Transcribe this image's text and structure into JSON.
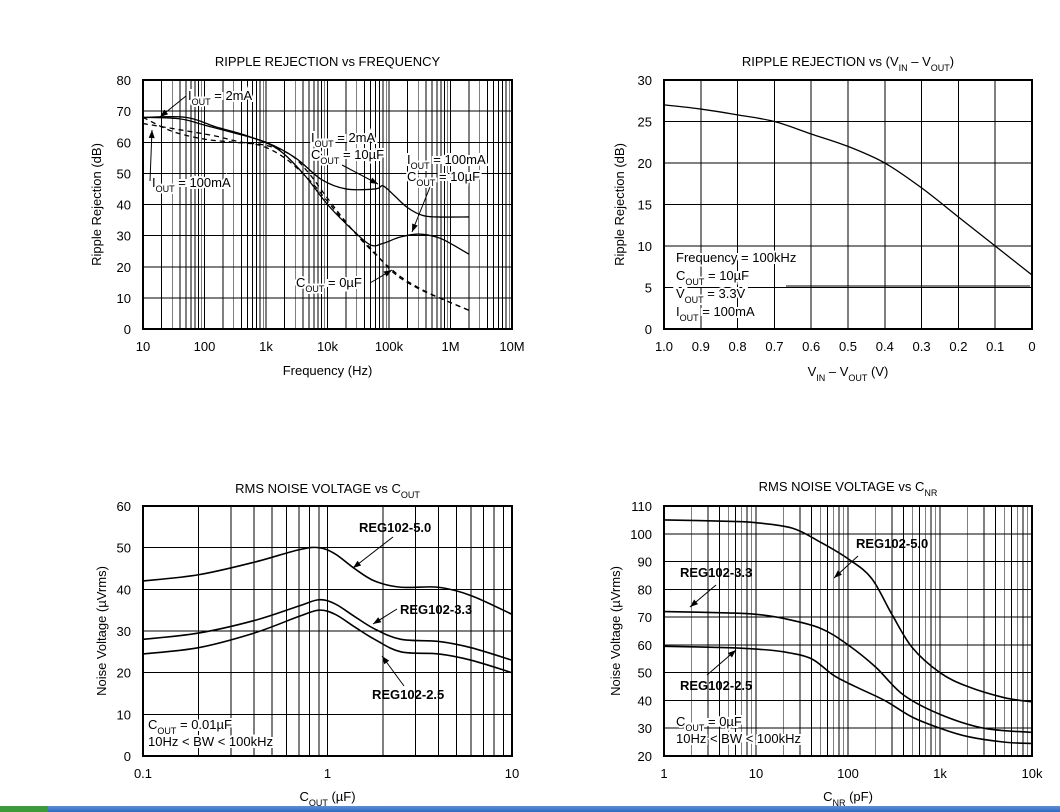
{
  "chart_data": [
    {
      "type": "line",
      "title": "RIPPLE REJECTION vs FREQUENCY",
      "xlabel": "Frequency (Hz)",
      "ylabel": "Ripple Rejection (dB)",
      "xscale": "log",
      "xlim": [
        10,
        10000000
      ],
      "ylim": [
        0,
        80
      ],
      "grid": true,
      "xticks": [
        {
          "v": 10,
          "label": "10"
        },
        {
          "v": 100,
          "label": "100"
        },
        {
          "v": 1000,
          "label": "1k"
        },
        {
          "v": 10000,
          "label": "10k"
        },
        {
          "v": 100000,
          "label": "100k"
        },
        {
          "v": 1000000,
          "label": "1M"
        },
        {
          "v": 10000000,
          "label": "10M"
        }
      ],
      "yticks": [
        0,
        10,
        20,
        30,
        40,
        50,
        60,
        70,
        80
      ],
      "series": [
        {
          "dash": false,
          "points": [
            [
              10,
              68
            ],
            [
              40,
              67.5
            ],
            [
              100,
              65.5
            ],
            [
              300,
              63
            ],
            [
              1000,
              60
            ],
            [
              3000,
              55
            ],
            [
              8000,
              48
            ],
            [
              20000,
              45
            ],
            [
              60000,
              45
            ],
            [
              80000,
              46
            ],
            [
              120000,
              43
            ],
            [
              200000,
              39
            ],
            [
              350000,
              36.5
            ],
            [
              600000,
              36
            ],
            [
              2000000,
              36
            ]
          ]
        },
        {
          "dash": false,
          "points": [
            [
              10,
              68
            ],
            [
              50,
              68
            ],
            [
              150,
              65
            ],
            [
              500,
              62
            ],
            [
              1500,
              58
            ],
            [
              4000,
              50
            ],
            [
              10000,
              40
            ],
            [
              25000,
              32
            ],
            [
              50000,
              27
            ],
            [
              80000,
              27.5
            ],
            [
              150000,
              29.5
            ],
            [
              300000,
              30.5
            ],
            [
              600000,
              29.5
            ],
            [
              1000000,
              27.5
            ],
            [
              2000000,
              24
            ]
          ]
        },
        {
          "dash": true,
          "points": [
            [
              10,
              66
            ],
            [
              40,
              64
            ],
            [
              150,
              62
            ],
            [
              400,
              60
            ],
            [
              1000,
              59
            ],
            [
              2500,
              56
            ],
            [
              5000,
              50
            ],
            [
              10000,
              42
            ],
            [
              25000,
              32
            ],
            [
              60000,
              24
            ],
            [
              150000,
              17
            ],
            [
              400000,
              12
            ],
            [
              1000000,
              8.5
            ],
            [
              2000000,
              6
            ]
          ]
        },
        {
          "dash": true,
          "points": [
            [
              10,
              68
            ],
            [
              30,
              63.5
            ],
            [
              100,
              61
            ],
            [
              300,
              60
            ],
            [
              800,
              59
            ],
            [
              2000,
              55
            ],
            [
              5000,
              48
            ],
            [
              10000,
              41
            ],
            [
              20000,
              34
            ],
            [
              50000,
              26
            ],
            [
              120000,
              18
            ],
            [
              300000,
              13
            ],
            [
              1000000,
              8.5
            ],
            [
              2000000,
              6
            ]
          ]
        }
      ],
      "labels": [
        {
          "lines": [
            [
              "I",
              "OUT",
              " = 2mA"
            ]
          ]
        },
        {
          "lines": [
            [
              "I",
              "OUT",
              " = 100mA"
            ]
          ]
        },
        {
          "lines": [
            [
              "I",
              "OUT",
              " = 2mA"
            ],
            [
              "C",
              "OUT",
              " = 10µF"
            ]
          ]
        },
        {
          "lines": [
            [
              "I",
              "OUT",
              " = 100mA"
            ],
            [
              "C",
              "OUT",
              " = 10µF"
            ]
          ]
        },
        {
          "lines": [
            [
              "C",
              "OUT",
              " = 0µF"
            ]
          ]
        }
      ]
    },
    {
      "type": "line",
      "title": "RIPPLE REJECTION vs (V_IN – V_OUT)",
      "title_parts": [
        "RIPPLE REJECTION vs (V",
        "IN",
        " – V",
        "OUT",
        ")"
      ],
      "xlabel": "V_IN – V_OUT (V)",
      "xlabel_parts": [
        "V",
        "IN",
        " – V",
        "OUT",
        " (V)"
      ],
      "ylabel": "Ripple Rejection (dB)",
      "xscale": "linear-reversed",
      "xlim": [
        1.0,
        0
      ],
      "ylim": [
        0,
        30
      ],
      "grid": true,
      "xticks": [
        {
          "v": 1.0,
          "label": "1.0"
        },
        {
          "v": 0.9,
          "label": "0.9"
        },
        {
          "v": 0.8,
          "label": "0.8"
        },
        {
          "v": 0.7,
          "label": "0.7"
        },
        {
          "v": 0.6,
          "label": "0.6"
        },
        {
          "v": 0.5,
          "label": "0.5"
        },
        {
          "v": 0.4,
          "label": "0.4"
        },
        {
          "v": 0.3,
          "label": "0.3"
        },
        {
          "v": 0.2,
          "label": "0.2"
        },
        {
          "v": 0.1,
          "label": "0.1"
        },
        {
          "v": 0,
          "label": "0"
        }
      ],
      "yticks": [
        0,
        5,
        10,
        15,
        20,
        25,
        30
      ],
      "series": [
        {
          "dash": false,
          "points": [
            [
              1.0,
              27
            ],
            [
              0.9,
              26.5
            ],
            [
              0.8,
              25.8
            ],
            [
              0.7,
              25
            ],
            [
              0.6,
              23.5
            ],
            [
              0.5,
              22
            ],
            [
              0.4,
              20
            ],
            [
              0.3,
              17
            ],
            [
              0.2,
              13.5
            ],
            [
              0.1,
              10
            ],
            [
              0,
              6.5
            ]
          ]
        }
      ],
      "labels": [
        {
          "lines": [
            [
              "Frequency = 100kHz"
            ],
            [
              "C",
              "OUT",
              " = 10µF"
            ],
            [
              "V",
              "OUT",
              " = 3.3V"
            ],
            [
              "I",
              "OUT",
              " = 100mA"
            ]
          ]
        }
      ]
    },
    {
      "type": "line",
      "title": "RMS NOISE VOLTAGE vs C_OUT",
      "title_parts": [
        "RMS NOISE VOLTAGE vs C",
        "OUT",
        ""
      ],
      "xlabel": "C_OUT (µF)",
      "xlabel_parts": [
        "C",
        "OUT",
        " (µF)"
      ],
      "ylabel": "Noise Voltage (µVrms)",
      "xscale": "log",
      "xlim": [
        0.1,
        10
      ],
      "ylim": [
        0,
        60
      ],
      "grid": true,
      "xticks": [
        {
          "v": 0.1,
          "label": "0.1"
        },
        {
          "v": 1,
          "label": "1"
        },
        {
          "v": 10,
          "label": "10"
        }
      ],
      "yticks": [
        0,
        10,
        20,
        30,
        40,
        50,
        60
      ],
      "series": [
        {
          "name": "REG102-5.0",
          "dash": false,
          "points": [
            [
              0.1,
              42
            ],
            [
              0.2,
              43.5
            ],
            [
              0.4,
              46.5
            ],
            [
              0.7,
              49.5
            ],
            [
              0.9,
              50
            ],
            [
              1.1,
              48.5
            ],
            [
              1.4,
              45
            ],
            [
              1.8,
              42
            ],
            [
              2.5,
              40.5
            ],
            [
              4,
              40.5
            ],
            [
              6,
              38.5
            ],
            [
              10,
              34
            ]
          ]
        },
        {
          "name": "REG102-3.3",
          "dash": false,
          "points": [
            [
              0.1,
              28
            ],
            [
              0.2,
              29.5
            ],
            [
              0.4,
              32.5
            ],
            [
              0.7,
              36
            ],
            [
              0.9,
              37.5
            ],
            [
              1.1,
              36.5
            ],
            [
              1.4,
              33.5
            ],
            [
              1.8,
              30.5
            ],
            [
              2.5,
              28
            ],
            [
              4,
              27.5
            ],
            [
              6,
              26
            ],
            [
              10,
              23
            ]
          ]
        },
        {
          "name": "REG102-2.5",
          "dash": false,
          "points": [
            [
              0.1,
              24.5
            ],
            [
              0.2,
              26
            ],
            [
              0.4,
              29.5
            ],
            [
              0.7,
              33.5
            ],
            [
              0.9,
              35
            ],
            [
              1.1,
              34
            ],
            [
              1.4,
              31
            ],
            [
              1.8,
              28
            ],
            [
              2.5,
              25
            ],
            [
              4,
              24.5
            ],
            [
              6,
              23
            ],
            [
              10,
              20
            ]
          ]
        }
      ],
      "labels": [
        {
          "lines": [
            [
              "REG102-5.0"
            ]
          ]
        },
        {
          "lines": [
            [
              "REG102-3.3"
            ]
          ]
        },
        {
          "lines": [
            [
              "REG102-2.5"
            ]
          ]
        },
        {
          "lines": [
            [
              "C",
              "OUT",
              " = 0.01µF"
            ],
            [
              "10Hz < BW < 100kHz"
            ]
          ]
        }
      ]
    },
    {
      "type": "line",
      "title": "RMS NOISE VOLTAGE vs C_NR",
      "title_parts": [
        "RMS NOISE VOLTAGE vs C",
        "NR",
        ""
      ],
      "xlabel": "C_NR (pF)",
      "xlabel_parts": [
        "C",
        "NR",
        " (pF)"
      ],
      "ylabel": "Noise Voltage (µVrms)",
      "xscale": "log",
      "xlim": [
        1,
        10000
      ],
      "ylim": [
        20,
        110
      ],
      "grid": true,
      "xticks": [
        {
          "v": 1,
          "label": "1"
        },
        {
          "v": 10,
          "label": "10"
        },
        {
          "v": 100,
          "label": "100"
        },
        {
          "v": 1000,
          "label": "1k"
        },
        {
          "v": 10000,
          "label": "10k"
        }
      ],
      "yticks": [
        20,
        30,
        40,
        50,
        60,
        70,
        80,
        90,
        100,
        110
      ],
      "series": [
        {
          "name": "REG102-5.0",
          "dash": false,
          "points": [
            [
              1,
              105
            ],
            [
              5,
              104.5
            ],
            [
              10,
              104
            ],
            [
              25,
              102
            ],
            [
              50,
              97
            ],
            [
              100,
              91
            ],
            [
              180,
              84
            ],
            [
              300,
              71
            ],
            [
              500,
              59
            ],
            [
              1000,
              50
            ],
            [
              2000,
              45
            ],
            [
              5000,
              41
            ],
            [
              10000,
              39.5
            ]
          ]
        },
        {
          "name": "REG102-3.3",
          "dash": false,
          "points": [
            [
              1,
              72
            ],
            [
              5,
              71.5
            ],
            [
              10,
              71
            ],
            [
              20,
              69.5
            ],
            [
              50,
              66
            ],
            [
              100,
              60
            ],
            [
              200,
              52
            ],
            [
              400,
              42
            ],
            [
              1000,
              35
            ],
            [
              3000,
              30
            ],
            [
              10000,
              28.5
            ]
          ]
        },
        {
          "name": "REG102-2.5",
          "dash": false,
          "points": [
            [
              1,
              59.5
            ],
            [
              5,
              59
            ],
            [
              10,
              58.5
            ],
            [
              20,
              57.5
            ],
            [
              40,
              55
            ],
            [
              70,
              49
            ],
            [
              120,
              45
            ],
            [
              250,
              40
            ],
            [
              500,
              34
            ],
            [
              1000,
              30
            ],
            [
              2000,
              27
            ],
            [
              5000,
              25
            ],
            [
              10000,
              24.5
            ]
          ]
        }
      ],
      "labels": [
        {
          "lines": [
            [
              "REG102-5.0"
            ]
          ]
        },
        {
          "lines": [
            [
              "REG102-3.3"
            ]
          ]
        },
        {
          "lines": [
            [
              "REG102-2.5"
            ]
          ]
        },
        {
          "lines": [
            [
              "C",
              "OUT",
              " = 0µF"
            ],
            [
              "10Hz < BW < 100kHz"
            ]
          ]
        }
      ]
    }
  ]
}
